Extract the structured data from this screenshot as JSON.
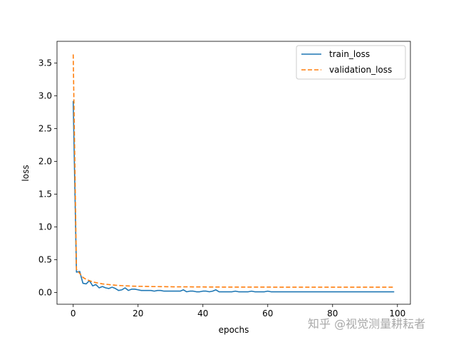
{
  "chart_data": {
    "type": "line",
    "title": "",
    "xlabel": "epochs",
    "ylabel": "loss",
    "xlim": [
      -5,
      104
    ],
    "ylim": [
      -0.18,
      3.83
    ],
    "x_ticks": [
      0,
      20,
      40,
      60,
      80,
      100
    ],
    "y_ticks": [
      0.0,
      0.5,
      1.0,
      1.5,
      2.0,
      2.5,
      3.0,
      3.5
    ],
    "x_tick_labels": [
      "0",
      "20",
      "40",
      "60",
      "80",
      "100"
    ],
    "y_tick_labels": [
      "0.0",
      "0.5",
      "1.0",
      "1.5",
      "2.0",
      "2.5",
      "3.0",
      "3.5"
    ],
    "grid": false,
    "legend_position": "top-right",
    "series": [
      {
        "name": "train_loss",
        "color": "#1f77b4",
        "linestyle": "solid",
        "x": [
          0,
          1,
          2,
          3,
          4,
          5,
          6,
          7,
          8,
          9,
          10,
          11,
          12,
          13,
          14,
          15,
          16,
          17,
          18,
          19,
          20,
          21,
          22,
          23,
          24,
          25,
          26,
          27,
          28,
          29,
          30,
          31,
          32,
          33,
          34,
          35,
          36,
          37,
          38,
          39,
          40,
          41,
          42,
          43,
          44,
          45,
          46,
          47,
          48,
          49,
          50,
          51,
          52,
          53,
          54,
          55,
          56,
          57,
          58,
          59,
          60,
          61,
          62,
          63,
          64,
          65,
          66,
          67,
          68,
          69,
          70,
          71,
          72,
          73,
          74,
          75,
          76,
          77,
          78,
          79,
          80,
          81,
          82,
          83,
          84,
          85,
          86,
          87,
          88,
          89,
          90,
          91,
          92,
          93,
          94,
          95,
          96,
          97,
          98,
          99
        ],
        "values": [
          2.92,
          0.31,
          0.32,
          0.14,
          0.13,
          0.18,
          0.1,
          0.12,
          0.07,
          0.09,
          0.07,
          0.06,
          0.08,
          0.06,
          0.03,
          0.04,
          0.07,
          0.03,
          0.05,
          0.05,
          0.04,
          0.03,
          0.03,
          0.03,
          0.03,
          0.02,
          0.03,
          0.03,
          0.02,
          0.02,
          0.02,
          0.02,
          0.02,
          0.02,
          0.04,
          0.01,
          0.02,
          0.02,
          0.01,
          0.01,
          0.02,
          0.02,
          0.01,
          0.02,
          0.04,
          0.01,
          0.01,
          0.01,
          0.01,
          0.01,
          0.02,
          0.01,
          0.01,
          0.01,
          0.01,
          0.02,
          0.01,
          0.01,
          0.01,
          0.01,
          0.02,
          0.01,
          0.01,
          0.01,
          0.01,
          0.01,
          0.01,
          0.01,
          0.01,
          0.01,
          0.01,
          0.01,
          0.01,
          0.01,
          0.01,
          0.01,
          0.01,
          0.01,
          0.01,
          0.01,
          0.01,
          0.01,
          0.01,
          0.01,
          0.01,
          0.01,
          0.01,
          0.01,
          0.01,
          0.01,
          0.01,
          0.01,
          0.01,
          0.01,
          0.01,
          0.01,
          0.01,
          0.01,
          0.01,
          0.01
        ]
      },
      {
        "name": "validation_loss",
        "color": "#ff7f0e",
        "linestyle": "dashed",
        "x": [
          0,
          1,
          2,
          3,
          4,
          5,
          6,
          7,
          8,
          9,
          10,
          11,
          12,
          13,
          14,
          15,
          16,
          17,
          18,
          19,
          20,
          21,
          22,
          23,
          24,
          25,
          26,
          27,
          28,
          29,
          30,
          31,
          32,
          33,
          34,
          35,
          36,
          37,
          38,
          39,
          40,
          41,
          42,
          43,
          44,
          45,
          46,
          47,
          48,
          49,
          50,
          51,
          52,
          53,
          54,
          55,
          56,
          57,
          58,
          59,
          60,
          61,
          62,
          63,
          64,
          65,
          66,
          67,
          68,
          69,
          70,
          71,
          72,
          73,
          74,
          75,
          76,
          77,
          78,
          79,
          80,
          81,
          82,
          83,
          84,
          85,
          86,
          87,
          88,
          89,
          90,
          91,
          92,
          93,
          94,
          95,
          96,
          97,
          98,
          99
        ],
        "values": [
          3.63,
          0.35,
          0.29,
          0.23,
          0.2,
          0.18,
          0.16,
          0.15,
          0.14,
          0.13,
          0.125,
          0.12,
          0.115,
          0.11,
          0.107,
          0.104,
          0.101,
          0.099,
          0.097,
          0.095,
          0.094,
          0.093,
          0.092,
          0.091,
          0.09,
          0.089,
          0.089,
          0.088,
          0.088,
          0.087,
          0.087,
          0.086,
          0.086,
          0.086,
          0.085,
          0.085,
          0.085,
          0.084,
          0.084,
          0.084,
          0.084,
          0.083,
          0.083,
          0.083,
          0.083,
          0.083,
          0.082,
          0.082,
          0.082,
          0.082,
          0.082,
          0.082,
          0.082,
          0.081,
          0.081,
          0.081,
          0.081,
          0.081,
          0.081,
          0.081,
          0.081,
          0.081,
          0.08,
          0.08,
          0.08,
          0.08,
          0.08,
          0.08,
          0.08,
          0.08,
          0.08,
          0.08,
          0.08,
          0.08,
          0.08,
          0.08,
          0.08,
          0.08,
          0.08,
          0.08,
          0.08,
          0.08,
          0.08,
          0.08,
          0.08,
          0.08,
          0.08,
          0.08,
          0.08,
          0.08,
          0.08,
          0.08,
          0.08,
          0.08,
          0.08,
          0.08,
          0.08,
          0.08,
          0.08,
          0.08
        ]
      }
    ]
  },
  "watermark": "知乎 @视觉测量耕耘者"
}
